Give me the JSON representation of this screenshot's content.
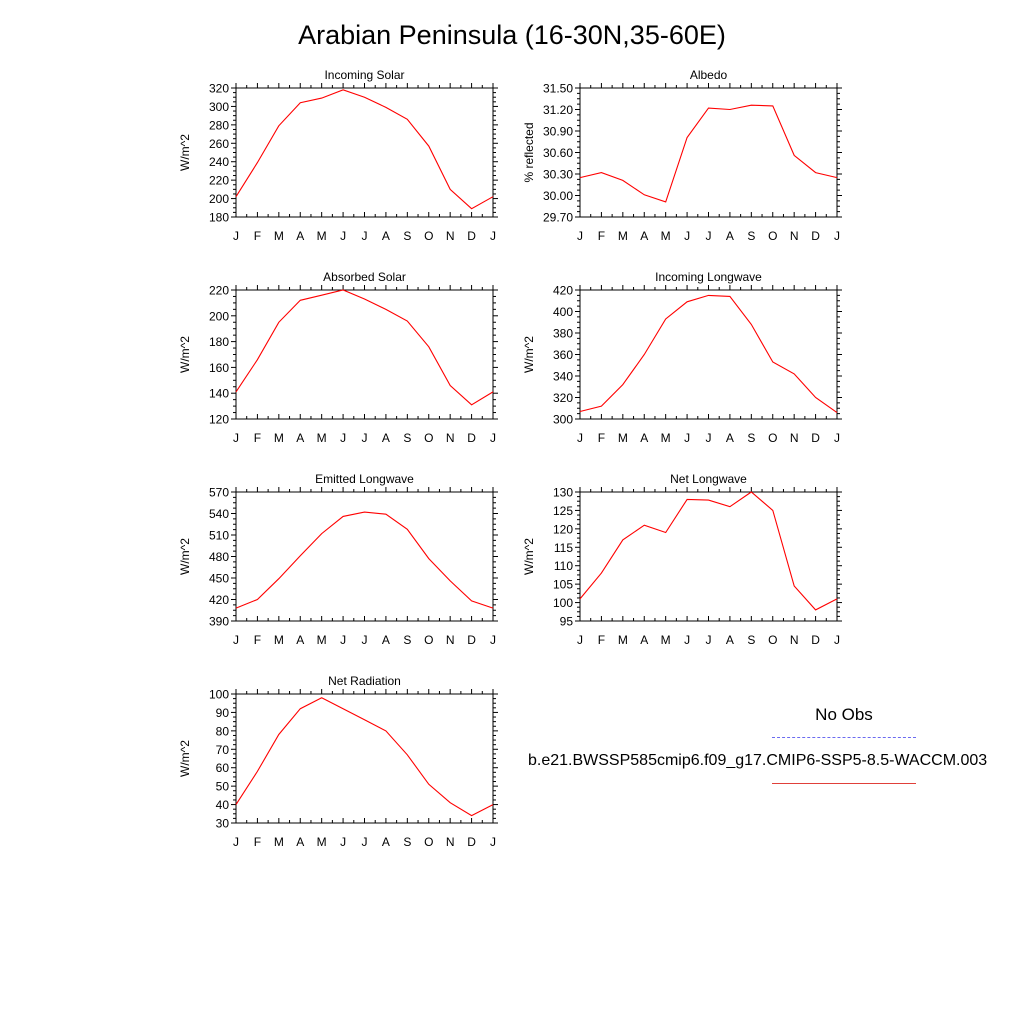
{
  "title": "Arabian Peninsula (16-30N,35-60E)",
  "colors": {
    "model_line": "#ff0000",
    "obs_line": "#5a5af0",
    "axis": "#000000"
  },
  "legend": {
    "obs_label": "No Obs",
    "model_label": "b.e21.BWSSP585cmip6.f09_g17.CMIP6-SSP5-8.5-WACCM.003"
  },
  "chart_data": [
    {
      "type": "line",
      "title": "Incoming Solar",
      "ylabel": "W/m^2",
      "categories": [
        "J",
        "F",
        "M",
        "A",
        "M",
        "J",
        "J",
        "A",
        "S",
        "O",
        "N",
        "D",
        "J"
      ],
      "ylim": [
        180,
        320
      ],
      "yticks": [
        180,
        200,
        220,
        240,
        260,
        280,
        300,
        320
      ],
      "ytick_labels": [
        "180",
        "200",
        "220",
        "240",
        "260",
        "280",
        "300",
        "320"
      ],
      "series": [
        {
          "values": [
            202,
            239,
            279,
            304,
            309,
            318,
            310,
            299,
            286,
            257,
            210,
            189,
            202
          ]
        }
      ]
    },
    {
      "type": "line",
      "title": "Albedo",
      "ylabel": "% reflected",
      "categories": [
        "J",
        "F",
        "M",
        "A",
        "M",
        "J",
        "J",
        "A",
        "S",
        "O",
        "N",
        "D",
        "J"
      ],
      "ylim": [
        29.7,
        31.5
      ],
      "yticks": [
        29.7,
        30.0,
        30.3,
        30.6,
        30.9,
        31.2,
        31.5
      ],
      "ytick_labels": [
        "29.70",
        "30.00",
        "30.30",
        "30.60",
        "30.90",
        "31.20",
        "31.50"
      ],
      "series": [
        {
          "values": [
            30.25,
            30.32,
            30.21,
            30.01,
            29.91,
            30.81,
            31.22,
            31.2,
            31.26,
            31.25,
            30.56,
            30.32,
            30.25
          ]
        }
      ]
    },
    {
      "type": "line",
      "title": "Absorbed Solar",
      "ylabel": "W/m^2",
      "categories": [
        "J",
        "F",
        "M",
        "A",
        "M",
        "J",
        "J",
        "A",
        "S",
        "O",
        "N",
        "D",
        "J"
      ],
      "ylim": [
        120,
        220
      ],
      "yticks": [
        120,
        140,
        160,
        180,
        200,
        220
      ],
      "ytick_labels": [
        "120",
        "140",
        "160",
        "180",
        "200",
        "220"
      ],
      "series": [
        {
          "values": [
            141,
            166,
            195,
            212,
            216,
            220,
            213,
            205,
            196,
            176,
            146,
            131,
            141
          ]
        }
      ]
    },
    {
      "type": "line",
      "title": "Incoming Longwave",
      "ylabel": "W/m^2",
      "categories": [
        "J",
        "F",
        "M",
        "A",
        "M",
        "J",
        "J",
        "A",
        "S",
        "O",
        "N",
        "D",
        "J"
      ],
      "ylim": [
        300,
        420
      ],
      "yticks": [
        300,
        320,
        340,
        360,
        380,
        400,
        420
      ],
      "ytick_labels": [
        "300",
        "320",
        "340",
        "360",
        "380",
        "400",
        "420"
      ],
      "series": [
        {
          "values": [
            307,
            312,
            332,
            360,
            393,
            409,
            415,
            414,
            388,
            353,
            342,
            320,
            306
          ]
        }
      ]
    },
    {
      "type": "line",
      "title": "Emitted Longwave",
      "ylabel": "W/m^2",
      "categories": [
        "J",
        "F",
        "M",
        "A",
        "M",
        "J",
        "J",
        "A",
        "S",
        "O",
        "N",
        "D",
        "J"
      ],
      "ylim": [
        390,
        570
      ],
      "yticks": [
        390,
        420,
        450,
        480,
        510,
        540,
        570
      ],
      "ytick_labels": [
        "390",
        "420",
        "450",
        "480",
        "510",
        "540",
        "570"
      ],
      "series": [
        {
          "values": [
            408,
            420,
            449,
            481,
            512,
            536,
            542,
            539,
            518,
            477,
            446,
            418,
            408
          ]
        }
      ]
    },
    {
      "type": "line",
      "title": "Net Longwave",
      "ylabel": "W/m^2",
      "categories": [
        "J",
        "F",
        "M",
        "A",
        "M",
        "J",
        "J",
        "A",
        "S",
        "O",
        "N",
        "D",
        "J"
      ],
      "ylim": [
        95,
        130
      ],
      "yticks": [
        95,
        100,
        105,
        110,
        115,
        120,
        125,
        130
      ],
      "ytick_labels": [
        "95",
        "100",
        "105",
        "110",
        "115",
        "120",
        "125",
        "130"
      ],
      "series": [
        {
          "values": [
            101,
            108,
            117,
            121,
            119,
            128,
            127.8,
            126,
            130,
            125,
            104.5,
            98,
            101
          ]
        }
      ]
    },
    {
      "type": "line",
      "title": "Net Radiation",
      "ylabel": "W/m^2",
      "categories": [
        "J",
        "F",
        "M",
        "A",
        "M",
        "J",
        "J",
        "A",
        "S",
        "O",
        "N",
        "D",
        "J"
      ],
      "ylim": [
        30,
        100
      ],
      "yticks": [
        30,
        40,
        50,
        60,
        70,
        80,
        90,
        100
      ],
      "ytick_labels": [
        "30",
        "40",
        "50",
        "60",
        "70",
        "80",
        "90",
        "100"
      ],
      "series": [
        {
          "values": [
            40,
            58,
            78,
            92,
            98,
            92,
            86,
            80,
            67,
            51,
            41,
            34,
            40
          ]
        }
      ]
    }
  ]
}
